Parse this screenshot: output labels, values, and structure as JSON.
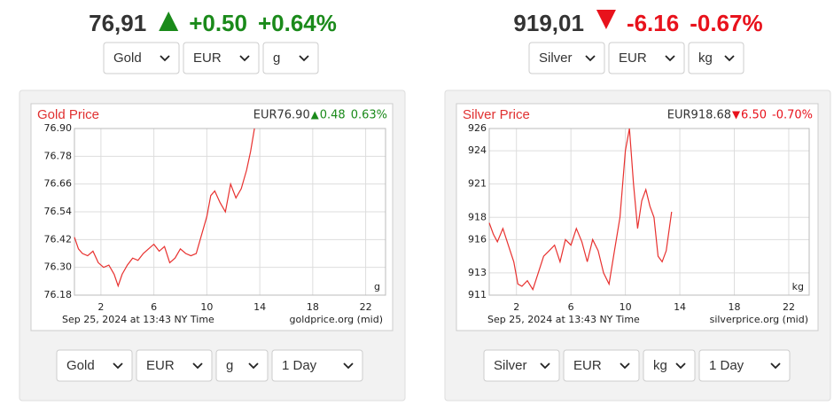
{
  "widgets": [
    {
      "price": "76,91",
      "change": "+0.50",
      "change_pct": "+0.64%",
      "direction": "up",
      "top_selects": [
        "Gold",
        "EUR",
        "g"
      ],
      "bottom_selects": [
        "Gold",
        "EUR",
        "g",
        "1 Day"
      ]
    },
    {
      "price": "919,01",
      "change": "-6.16",
      "change_pct": "-0.67%",
      "direction": "down",
      "top_selects": [
        "Silver",
        "EUR",
        "kg"
      ],
      "bottom_selects": [
        "Silver",
        "EUR",
        "kg",
        "1 Day"
      ]
    }
  ],
  "chart_data": [
    {
      "type": "line",
      "title": "Gold Price",
      "quote_price": "EUR76.90",
      "quote_change": "0.48",
      "quote_change_pct": "0.63%",
      "direction": "up",
      "unit_label": "g",
      "footer_date": "Sep 25, 2024 at 13:43 NY Time",
      "source": "goldprice.org (mid)",
      "color": "#e8312f",
      "grid": true,
      "x": [
        0,
        0.3,
        0.6,
        1,
        1.4,
        1.8,
        2.2,
        2.6,
        3,
        3.3,
        3.6,
        4,
        4.4,
        4.8,
        5.2,
        5.6,
        6,
        6.4,
        6.8,
        7.2,
        7.6,
        8,
        8.4,
        8.8,
        9.2,
        9.6,
        10,
        10.3,
        10.6,
        11,
        11.4,
        11.8,
        12.2,
        12.6,
        13,
        13.3,
        13.6
      ],
      "values": [
        76.43,
        76.38,
        76.36,
        76.35,
        76.37,
        76.32,
        76.3,
        76.31,
        76.27,
        76.22,
        76.27,
        76.31,
        76.34,
        76.33,
        76.36,
        76.38,
        76.4,
        76.37,
        76.39,
        76.32,
        76.34,
        76.38,
        76.36,
        76.35,
        76.36,
        76.44,
        76.52,
        76.61,
        76.63,
        76.58,
        76.54,
        76.66,
        76.6,
        76.64,
        76.72,
        76.8,
        76.9
      ],
      "xlim": [
        0,
        23.5
      ],
      "xticks": [
        2,
        6,
        10,
        14,
        18,
        22
      ],
      "ylim": [
        76.18,
        76.9
      ],
      "yticks": [
        76.18,
        {
          "value": 76.3,
          "label": "76.30"
        },
        76.42,
        76.54,
        76.66,
        76.78,
        {
          "value": 76.9,
          "label": "76.90"
        }
      ]
    },
    {
      "type": "line",
      "title": "Silver Price",
      "quote_price": "EUR918.68",
      "quote_change": "6.50",
      "quote_change_pct": "-0.70%",
      "direction": "down",
      "unit_label": "kg",
      "footer_date": "Sep 25, 2024 at 13:43 NY Time",
      "source": "silverprice.org (mid)",
      "color": "#e8312f",
      "grid": true,
      "x": [
        0,
        0.3,
        0.6,
        1,
        1.4,
        1.8,
        2.1,
        2.4,
        2.8,
        3.2,
        3.6,
        4,
        4.4,
        4.8,
        5.2,
        5.6,
        6,
        6.4,
        6.8,
        7.2,
        7.6,
        8,
        8.4,
        8.8,
        9.2,
        9.6,
        10,
        10.3,
        10.6,
        10.9,
        11.2,
        11.5,
        11.8,
        12.1,
        12.4,
        12.7,
        13,
        13.4
      ],
      "values": [
        917.5,
        916.5,
        915.8,
        917,
        915.5,
        914,
        912,
        911.8,
        912.3,
        911.5,
        913,
        914.5,
        915,
        915.5,
        914,
        916,
        915.5,
        917,
        915.8,
        914,
        916,
        915,
        913,
        912,
        915,
        918,
        924,
        926,
        921,
        917,
        919.5,
        920.5,
        919,
        918,
        914.5,
        914,
        915,
        918.5
      ],
      "xlim": [
        0,
        23.5
      ],
      "xticks": [
        2,
        6,
        10,
        14,
        18,
        22
      ],
      "ylim": [
        911,
        926
      ],
      "yticks": [
        911,
        913,
        916,
        918,
        921,
        924,
        926
      ]
    }
  ]
}
